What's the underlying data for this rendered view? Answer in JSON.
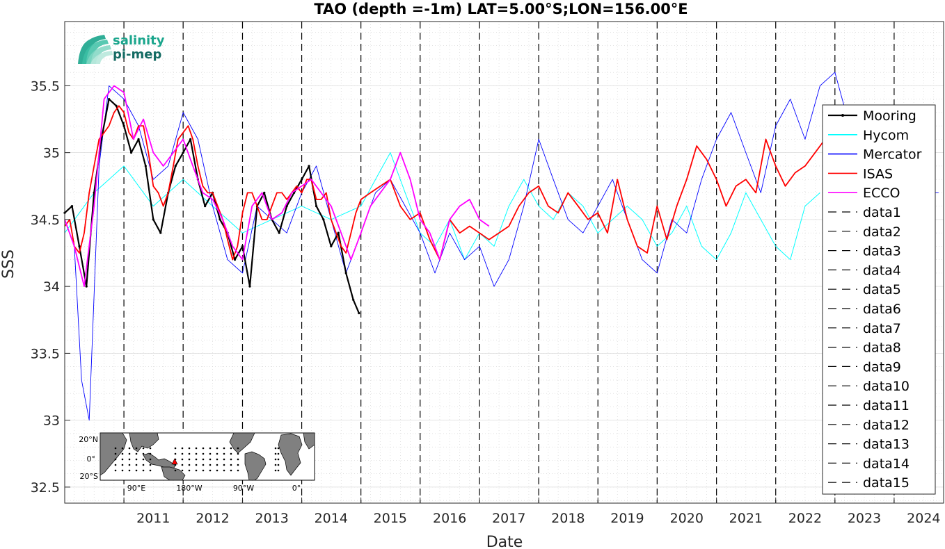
{
  "chart_data": {
    "type": "line",
    "title": "TAO (depth =-1m) LAT=5.00°S;LON=156.00°E",
    "xlabel": "Date",
    "ylabel": "SSS",
    "xlim": [
      "2010-01-01",
      "2024-11-01"
    ],
    "ylim": [
      32.38,
      35.98
    ],
    "x_ticks": [
      "2011",
      "2012",
      "2013",
      "2014",
      "2015",
      "2016",
      "2017",
      "2018",
      "2019",
      "2020",
      "2021",
      "2022",
      "2023",
      "2024"
    ],
    "y_ticks": [
      "32.5",
      "33",
      "33.5",
      "34",
      "34.5",
      "35",
      "35.5"
    ],
    "grid": true,
    "legend_position": "right",
    "series": [
      {
        "name": "Mooring",
        "color": "#000000",
        "style": "solid-dots",
        "dates": [
          "2010-01-01",
          "2010-02-15",
          "2010-04-01",
          "2010-05-15",
          "2010-07-01",
          "2010-08-15",
          "2010-10-01",
          "2010-11-15",
          "2011-01-01",
          "2011-02-15",
          "2011-04-01",
          "2011-05-15",
          "2011-07-01",
          "2011-08-15",
          "2011-10-01",
          "2011-11-15",
          "2012-01-01",
          "2012-02-15",
          "2012-04-01",
          "2012-05-15",
          "2012-07-01",
          "2012-08-15",
          "2012-10-01",
          "2012-11-15",
          "2013-01-01",
          "2013-02-15",
          "2013-04-01",
          "2013-05-15",
          "2013-07-01",
          "2013-08-15",
          "2013-10-01",
          "2013-11-15",
          "2014-01-01",
          "2014-02-15",
          "2014-04-01",
          "2014-05-15",
          "2014-07-01",
          "2014-08-15",
          "2014-10-01",
          "2014-11-15",
          "2014-12-20"
        ],
        "values": [
          34.55,
          34.6,
          34.3,
          34.0,
          34.7,
          35.1,
          35.4,
          35.35,
          35.2,
          35.0,
          35.1,
          34.9,
          34.5,
          34.4,
          34.7,
          34.9,
          35.0,
          35.1,
          34.8,
          34.6,
          34.7,
          34.5,
          34.4,
          34.2,
          34.3,
          34.0,
          34.6,
          34.7,
          34.5,
          34.4,
          34.6,
          34.7,
          34.8,
          34.9,
          34.6,
          34.5,
          34.3,
          34.4,
          34.1,
          33.9,
          33.8
        ]
      },
      {
        "name": "Hycom",
        "color": "#00ffff",
        "style": "solid",
        "dates": [
          "2010-01-01",
          "2010-07-01",
          "2011-01-01",
          "2011-07-01",
          "2012-01-01",
          "2012-07-01",
          "2013-01-01",
          "2013-07-01",
          "2014-01-01",
          "2014-07-01",
          "2015-01-01",
          "2015-04-01",
          "2015-07-01",
          "2015-10-01",
          "2016-01-01",
          "2016-04-01",
          "2016-07-01",
          "2016-10-01",
          "2017-01-01",
          "2017-04-01",
          "2017-07-01",
          "2017-10-01",
          "2018-01-01",
          "2018-04-01",
          "2018-07-01",
          "2018-10-01",
          "2019-01-01",
          "2019-04-01",
          "2019-07-01",
          "2019-10-01",
          "2020-01-01",
          "2020-04-01",
          "2020-07-01",
          "2020-10-01",
          "2021-01-01",
          "2021-04-01",
          "2021-07-01",
          "2021-10-01",
          "2022-01-01",
          "2022-04-01",
          "2022-07-01",
          "2022-10-01"
        ],
        "values": [
          34.4,
          34.7,
          34.9,
          34.6,
          34.8,
          34.6,
          34.4,
          34.5,
          34.6,
          34.5,
          34.6,
          34.8,
          35.0,
          34.7,
          34.4,
          34.3,
          34.5,
          34.2,
          34.4,
          34.3,
          34.6,
          34.8,
          34.6,
          34.5,
          34.7,
          34.6,
          34.4,
          34.5,
          34.6,
          34.5,
          34.3,
          34.4,
          34.6,
          34.3,
          34.2,
          34.4,
          34.7,
          34.5,
          34.3,
          34.2,
          34.6,
          34.7
        ]
      },
      {
        "name": "Mercator",
        "color": "#0000ff",
        "style": "solid",
        "dates": [
          "2010-01-01",
          "2010-03-01",
          "2010-04-15",
          "2010-06-01",
          "2010-08-01",
          "2010-10-01",
          "2011-01-01",
          "2011-04-01",
          "2011-07-01",
          "2011-10-01",
          "2012-01-01",
          "2012-04-01",
          "2012-07-01",
          "2012-10-01",
          "2013-01-01",
          "2013-04-01",
          "2013-07-01",
          "2013-10-01",
          "2014-01-01",
          "2014-04-01",
          "2014-07-01",
          "2014-10-01",
          "2015-01-01",
          "2015-04-01",
          "2015-07-01",
          "2015-10-01",
          "2016-01-01",
          "2016-04-01",
          "2016-07-01",
          "2016-10-01",
          "2017-01-01",
          "2017-04-01",
          "2017-07-01",
          "2017-10-01",
          "2018-01-01",
          "2018-04-01",
          "2018-07-01",
          "2018-10-01",
          "2019-01-01",
          "2019-04-01",
          "2019-07-01",
          "2019-10-01",
          "2020-01-01",
          "2020-04-01",
          "2020-07-01",
          "2020-10-01",
          "2021-01-01",
          "2021-04-01",
          "2021-07-01",
          "2021-10-01",
          "2022-01-01",
          "2022-04-01",
          "2022-07-01",
          "2022-10-01",
          "2023-01-01",
          "2023-04-01",
          "2023-07-01",
          "2023-10-01",
          "2024-01-01",
          "2024-04-01",
          "2024-07-01",
          "2024-10-01"
        ],
        "values": [
          34.5,
          34.3,
          33.3,
          33.0,
          34.9,
          35.5,
          35.4,
          35.2,
          34.8,
          34.9,
          35.3,
          35.1,
          34.6,
          34.2,
          34.1,
          34.6,
          34.5,
          34.4,
          34.7,
          34.9,
          34.5,
          34.1,
          34.4,
          34.7,
          34.8,
          34.6,
          34.4,
          34.1,
          34.4,
          34.2,
          34.3,
          34.0,
          34.2,
          34.6,
          35.1,
          34.8,
          34.5,
          34.4,
          34.6,
          34.8,
          34.5,
          34.2,
          34.1,
          34.5,
          34.4,
          34.8,
          35.1,
          35.3,
          35.0,
          34.7,
          35.2,
          35.4,
          35.1,
          35.5,
          35.6,
          35.2,
          34.8,
          35.0,
          34.8,
          34.6,
          34.7,
          34.7
        ]
      },
      {
        "name": "ISAS",
        "color": "#ff0000",
        "style": "solid",
        "dates": [
          "2010-01-01",
          "2010-02-01",
          "2010-03-01",
          "2010-04-01",
          "2010-05-01",
          "2010-06-01",
          "2010-07-01",
          "2010-08-01",
          "2010-09-01",
          "2010-10-01",
          "2010-11-01",
          "2010-12-01",
          "2011-01-01",
          "2011-02-01",
          "2011-03-01",
          "2011-04-01",
          "2011-05-01",
          "2011-06-01",
          "2011-07-01",
          "2011-08-01",
          "2011-09-01",
          "2011-10-01",
          "2011-11-01",
          "2011-12-01",
          "2012-01-01",
          "2012-02-01",
          "2012-03-01",
          "2012-04-01",
          "2012-05-01",
          "2012-06-01",
          "2012-07-01",
          "2012-08-01",
          "2012-09-01",
          "2012-10-01",
          "2012-11-01",
          "2012-12-01",
          "2013-01-01",
          "2013-02-01",
          "2013-03-01",
          "2013-04-01",
          "2013-05-01",
          "2013-06-01",
          "2013-07-01",
          "2013-08-01",
          "2013-09-01",
          "2013-10-01",
          "2013-11-01",
          "2013-12-01",
          "2014-01-01",
          "2014-02-01",
          "2014-03-01",
          "2014-04-01",
          "2014-05-01",
          "2014-06-01",
          "2014-07-01",
          "2014-08-01",
          "2014-09-01",
          "2014-10-01",
          "2014-11-01",
          "2014-12-01",
          "2015-01-01",
          "2015-03-01",
          "2015-05-01",
          "2015-07-01",
          "2015-09-01",
          "2015-11-01",
          "2016-01-01",
          "2016-03-01",
          "2016-05-01",
          "2016-07-01",
          "2016-09-01",
          "2016-11-01",
          "2017-01-01",
          "2017-03-01",
          "2017-05-01",
          "2017-07-01",
          "2017-09-01",
          "2017-11-01",
          "2018-01-01",
          "2018-03-01",
          "2018-05-01",
          "2018-07-01",
          "2018-09-01",
          "2018-11-01",
          "2019-01-01",
          "2019-03-01",
          "2019-05-01",
          "2019-07-01",
          "2019-09-01",
          "2019-11-01",
          "2020-01-01",
          "2020-03-01",
          "2020-05-01",
          "2020-07-01",
          "2020-09-01",
          "2020-11-01",
          "2021-01-01",
          "2021-03-01",
          "2021-05-01",
          "2021-07-01",
          "2021-09-01",
          "2021-11-01",
          "2022-01-01",
          "2022-03-01",
          "2022-05-01",
          "2022-07-01",
          "2022-09-01",
          "2022-11-01",
          "2022-12-15"
        ],
        "values": [
          34.45,
          34.5,
          34.3,
          34.25,
          34.4,
          34.7,
          34.9,
          35.1,
          35.15,
          35.2,
          35.3,
          35.35,
          35.3,
          35.15,
          35.1,
          35.2,
          35.2,
          35.0,
          34.75,
          34.7,
          34.6,
          34.7,
          34.9,
          35.1,
          35.15,
          35.2,
          35.1,
          34.9,
          34.75,
          34.7,
          34.7,
          34.6,
          34.5,
          34.35,
          34.2,
          34.3,
          34.55,
          34.7,
          34.7,
          34.6,
          34.5,
          34.5,
          34.6,
          34.7,
          34.7,
          34.65,
          34.7,
          34.75,
          34.7,
          34.8,
          34.8,
          34.65,
          34.65,
          34.7,
          34.5,
          34.4,
          34.3,
          34.25,
          34.4,
          34.55,
          34.65,
          34.7,
          34.75,
          34.8,
          34.6,
          34.5,
          34.55,
          34.35,
          34.2,
          34.5,
          34.4,
          34.45,
          34.4,
          34.35,
          34.4,
          34.45,
          34.6,
          34.7,
          34.75,
          34.6,
          34.55,
          34.7,
          34.6,
          34.5,
          34.55,
          34.4,
          34.8,
          34.5,
          34.3,
          34.25,
          34.6,
          34.35,
          34.6,
          34.8,
          35.05,
          34.95,
          34.8,
          34.6,
          34.75,
          34.8,
          34.7,
          35.1,
          34.9,
          34.75,
          34.85,
          34.9,
          35.0,
          35.1,
          35.05
        ]
      },
      {
        "name": "ECCO",
        "color": "#ff00ff",
        "style": "solid",
        "dates": [
          "2010-01-01",
          "2010-03-01",
          "2010-05-01",
          "2010-07-01",
          "2010-09-01",
          "2010-11-01",
          "2011-01-01",
          "2011-03-01",
          "2011-05-01",
          "2011-07-01",
          "2011-09-01",
          "2011-11-01",
          "2012-01-01",
          "2012-03-01",
          "2012-05-01",
          "2012-07-01",
          "2012-09-01",
          "2012-11-01",
          "2013-01-01",
          "2013-03-01",
          "2013-05-01",
          "2013-07-01",
          "2013-09-01",
          "2013-11-01",
          "2014-01-01",
          "2014-03-01",
          "2014-05-01",
          "2014-07-01",
          "2014-09-01",
          "2014-11-01",
          "2015-01-01",
          "2015-03-01",
          "2015-05-01",
          "2015-07-01",
          "2015-09-01",
          "2015-11-01",
          "2016-01-01",
          "2016-03-01",
          "2016-05-01",
          "2016-07-01",
          "2016-09-01",
          "2016-11-01",
          "2017-01-01",
          "2017-03-01"
        ],
        "values": [
          34.5,
          34.3,
          34.0,
          34.6,
          35.4,
          35.5,
          35.45,
          35.1,
          35.25,
          35.0,
          34.9,
          35.0,
          35.1,
          34.9,
          34.7,
          34.65,
          34.5,
          34.3,
          34.2,
          34.6,
          34.7,
          34.5,
          34.55,
          34.7,
          34.75,
          34.8,
          34.7,
          34.6,
          34.4,
          34.2,
          34.4,
          34.6,
          34.7,
          34.8,
          35.0,
          34.8,
          34.5,
          34.4,
          34.2,
          34.5,
          34.6,
          34.65,
          34.5,
          34.45
        ]
      },
      {
        "name": "data1",
        "color": "#000000",
        "style": "dashed",
        "x": "2011-01-01"
      },
      {
        "name": "data2",
        "color": "#000000",
        "style": "dashed",
        "x": "2012-01-01"
      },
      {
        "name": "data3",
        "color": "#000000",
        "style": "dashed",
        "x": "2013-01-01"
      },
      {
        "name": "data4",
        "color": "#000000",
        "style": "dashed",
        "x": "2014-01-01"
      },
      {
        "name": "data5",
        "color": "#000000",
        "style": "dashed",
        "x": "2015-01-01"
      },
      {
        "name": "data6",
        "color": "#000000",
        "style": "dashed",
        "x": "2016-01-01"
      },
      {
        "name": "data7",
        "color": "#000000",
        "style": "dashed",
        "x": "2017-01-01"
      },
      {
        "name": "data8",
        "color": "#000000",
        "style": "dashed",
        "x": "2018-01-01"
      },
      {
        "name": "data9",
        "color": "#000000",
        "style": "dashed",
        "x": "2019-01-01"
      },
      {
        "name": "data10",
        "color": "#000000",
        "style": "dashed",
        "x": "2020-01-01"
      },
      {
        "name": "data11",
        "color": "#000000",
        "style": "dashed",
        "x": "2021-01-01"
      },
      {
        "name": "data12",
        "color": "#000000",
        "style": "dashed",
        "x": "2022-01-01"
      },
      {
        "name": "data13",
        "color": "#000000",
        "style": "dashed",
        "x": "2023-01-01"
      },
      {
        "name": "data14",
        "color": "#000000",
        "style": "dashed",
        "x": "2024-01-01"
      },
      {
        "name": "data15",
        "color": "#000000",
        "style": "dashed",
        "x": "2025-01-01"
      }
    ]
  },
  "logo": {
    "line1": "salinity",
    "line2": "pi-mep",
    "color1": "#1aa58c",
    "color2": "#146b63"
  },
  "inset_map": {
    "y_labels": [
      "20°N",
      "0°",
      "20°S"
    ],
    "x_labels": [
      "90°E",
      "180°W",
      "90°W",
      "0°"
    ],
    "marker_color": "#ff0000"
  }
}
